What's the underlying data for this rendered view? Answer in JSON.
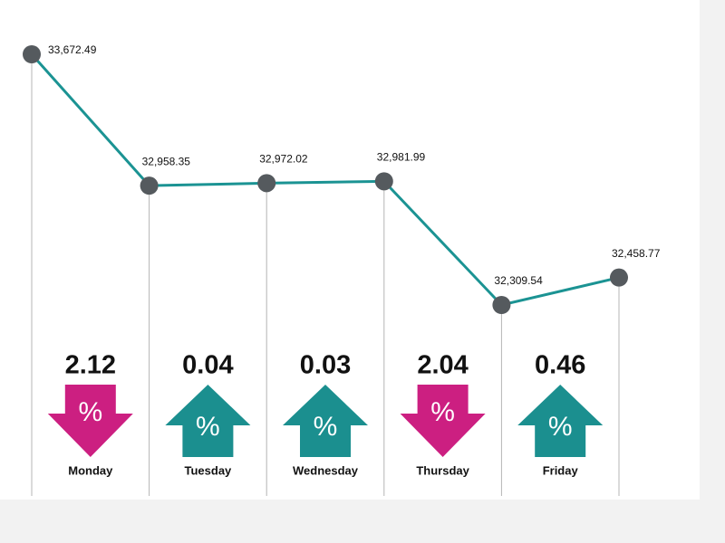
{
  "chart_data": {
    "type": "line",
    "categories": [
      null,
      "Monday",
      "Tuesday",
      "Wednesday",
      "Thursday",
      "Friday"
    ],
    "values": [
      33672.49,
      32958.35,
      32972.02,
      32981.99,
      32309.54,
      32458.77
    ],
    "value_labels": [
      "33,672.49",
      "32,958.35",
      "32,972.02",
      "32,981.99",
      "32,309.54",
      "32,458.77"
    ],
    "changes": [
      null,
      2.12,
      0.04,
      0.03,
      2.04,
      0.46
    ],
    "directions": [
      null,
      "down",
      "up",
      "up",
      "down",
      "up"
    ],
    "change_symbol": "%",
    "color": "#1b9393",
    "point_color": "#555a5e",
    "up_color": "#1b8f8f",
    "down_color": "#cc1f81"
  }
}
